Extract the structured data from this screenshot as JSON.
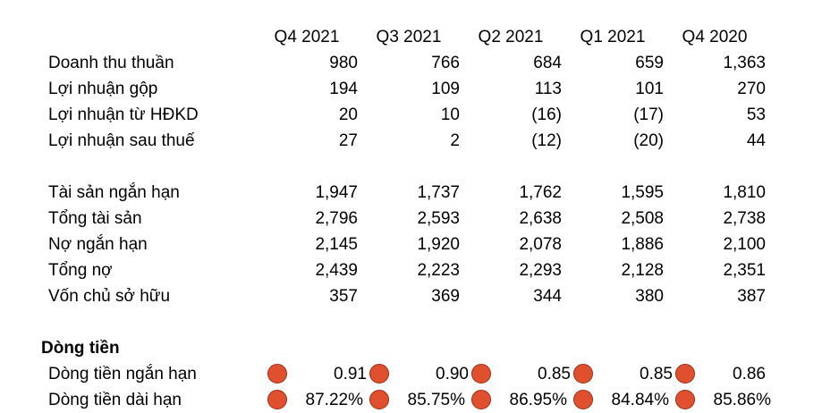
{
  "table": {
    "periods": [
      "Q4 2021",
      "Q3 2021",
      "Q2 2021",
      "Q1 2021",
      "Q4 2020"
    ],
    "income_rows": [
      {
        "label": "Doanh thu thuần",
        "values": [
          "980",
          "766",
          "684",
          "659",
          "1,363"
        ]
      },
      {
        "label": "Lợi nhuận gộp",
        "values": [
          "194",
          "109",
          "113",
          "101",
          "270"
        ]
      },
      {
        "label": "Lợi nhuận từ HĐKD",
        "values": [
          "20",
          "10",
          "(16)",
          "(17)",
          "53"
        ]
      },
      {
        "label": "Lợi nhuận sau thuế",
        "values": [
          "27",
          "2",
          "(12)",
          "(20)",
          "44"
        ]
      }
    ],
    "balance_rows": [
      {
        "label": "Tài sản ngắn hạn",
        "values": [
          "1,947",
          "1,737",
          "1,762",
          "1,595",
          "1,810"
        ]
      },
      {
        "label": "Tổng tài sản",
        "values": [
          "2,796",
          "2,593",
          "2,638",
          "2,508",
          "2,738"
        ]
      },
      {
        "label": "Nợ ngắn hạn",
        "values": [
          "2,145",
          "1,920",
          "2,078",
          "1,886",
          "2,100"
        ]
      },
      {
        "label": "Tổng nợ",
        "values": [
          "2,439",
          "2,223",
          "2,293",
          "2,128",
          "2,351"
        ]
      },
      {
        "label": "Vốn chủ sở hữu",
        "values": [
          "357",
          "369",
          "344",
          "380",
          "387"
        ]
      }
    ],
    "cashflow_title": "Dòng tiền",
    "cashflow_rows": [
      {
        "label": "Dòng tiền ngắn hạn",
        "values": [
          "0.91",
          "0.90",
          "0.85",
          "0.85",
          "0.86"
        ]
      },
      {
        "label": "Dòng tiền dài hạn",
        "values": [
          "87.22%",
          "85.75%",
          "86.95%",
          "84.84%",
          "85.86%"
        ]
      }
    ],
    "indicator_color": "#e0502f"
  }
}
